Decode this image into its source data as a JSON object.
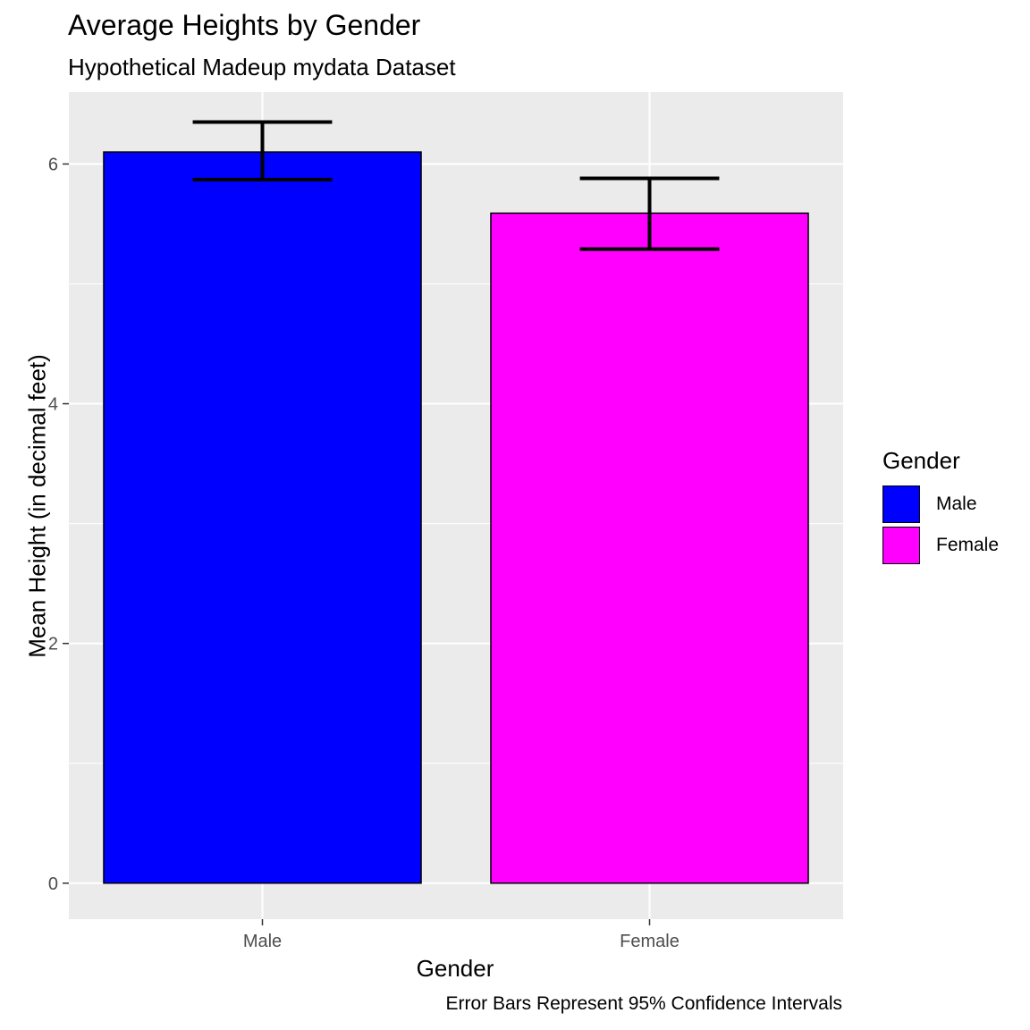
{
  "chart_data": {
    "type": "bar",
    "title": "Average Heights by Gender",
    "subtitle": "Hypothetical Madeup mydata Dataset",
    "caption": "Error Bars Represent 95% Confidence Intervals",
    "xlabel": "Gender",
    "ylabel": "Mean Height (in decimal feet)",
    "categories": [
      "Male",
      "Female"
    ],
    "values": [
      6.1,
      5.59
    ],
    "error_bars": [
      {
        "low": 5.87,
        "high": 6.35
      },
      {
        "low": 5.29,
        "high": 5.88
      }
    ],
    "colors": [
      "#0000ff",
      "#ff00ff"
    ],
    "ylim": [
      -0.3,
      6.6
    ],
    "yticks": [
      0,
      2,
      4,
      6
    ],
    "grid": true,
    "panel_background": "#ebebeb",
    "legend": {
      "title": "Gender",
      "placement": "right",
      "items": [
        {
          "label": "Male",
          "color": "#0000ff"
        },
        {
          "label": "Female",
          "color": "#ff00ff"
        }
      ]
    }
  }
}
